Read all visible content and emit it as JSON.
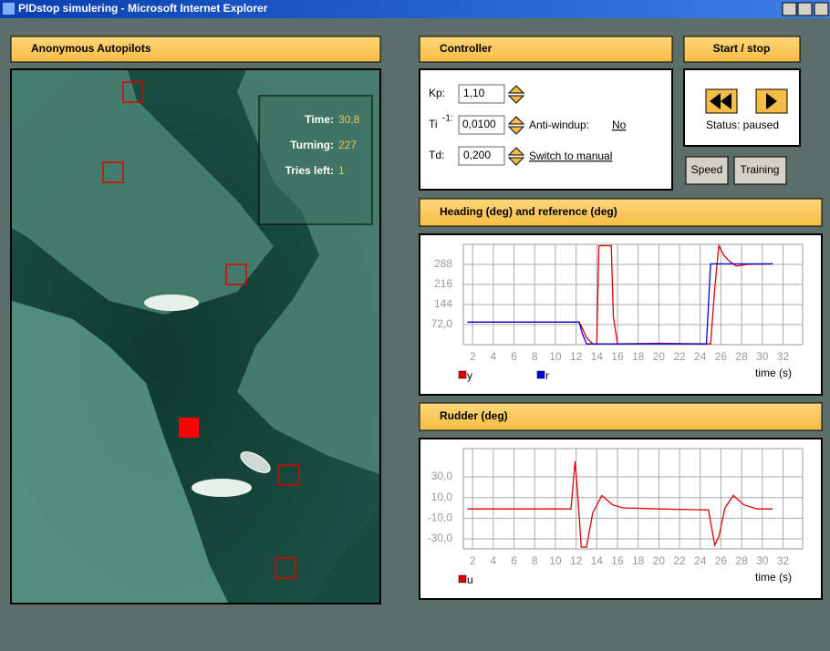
{
  "window": {
    "title": "PIDstop simulering - Microsoft Internet Explorer"
  },
  "map_panel": {
    "title": "Anonymous Autopilots",
    "info": [
      {
        "label": "Time:",
        "value": "30,8"
      },
      {
        "label": "Turning:",
        "value": "227"
      },
      {
        "label": "Tries left:",
        "value": "1"
      }
    ]
  },
  "controller": {
    "title": "Controller",
    "kp_label": "Kp:",
    "kp": "1,10",
    "ti_label": "Ti",
    "ti_exponent": "-1:",
    "ti": "0,0100",
    "anti_windup_label": "Anti-windup:",
    "anti_windup": "No",
    "td_label": "Td:",
    "td": "0,200",
    "switch_link": "Switch to manual"
  },
  "start_stop": {
    "title": "Start / stop",
    "status": "Status: paused",
    "buttons": [
      "Speed",
      "Training"
    ]
  },
  "chart_data": [
    {
      "type": "line",
      "title": "Heading (deg) and reference (deg)",
      "x_label": "time (s)",
      "grid": true,
      "x": [
        1.5,
        12.3,
        12.6,
        13.0,
        13.6,
        14.0,
        14.2,
        15.4,
        15.6,
        16.0,
        20,
        24.6,
        25.0,
        25.4,
        25.8,
        26.3,
        26.8,
        27.5,
        28.5,
        31
      ],
      "series": [
        {
          "name": "y",
          "color": "#e00000",
          "values": [
            81,
            81,
            60,
            25,
            3,
            3,
            355,
            355,
            100,
            3,
            5,
            3,
            3,
            200,
            355,
            320,
            300,
            282,
            288,
            290
          ]
        },
        {
          "name": "r",
          "color": "#0000e0",
          "values": [
            81,
            81,
            40,
            3,
            3,
            3,
            3,
            3,
            3,
            3,
            3,
            3,
            290,
            290,
            290,
            290,
            290,
            290,
            290,
            290
          ]
        }
      ],
      "xlim": [
        1.1,
        33.9
      ],
      "ylim": [
        0,
        360
      ],
      "xticks": [
        2,
        4,
        6,
        8,
        10,
        12,
        14,
        16,
        18,
        20,
        22,
        24,
        26,
        28,
        30,
        32
      ],
      "yticks": [
        {
          "value": 72,
          "label": "72,0"
        },
        144,
        216,
        288
      ]
    },
    {
      "type": "line",
      "title": "Rudder (deg)",
      "x_label": "time (s)",
      "grid": true,
      "x": [
        1.5,
        11.5,
        11.9,
        12.1,
        12.5,
        13.0,
        13.6,
        14.5,
        15.5,
        16.5,
        20,
        24.8,
        25.4,
        25.8,
        26.4,
        27.2,
        28.2,
        29.5,
        31
      ],
      "series": [
        {
          "name": "u",
          "color": "#e00000",
          "values": [
            -1,
            -1,
            45,
            20,
            -38,
            -38,
            -5,
            12,
            3,
            0,
            -1,
            -2,
            -36,
            -28,
            0,
            12,
            3,
            -1,
            -1
          ]
        }
      ],
      "xlim": [
        1.1,
        33.9
      ],
      "ylim": [
        -39.7,
        57.4
      ],
      "xticks": [
        2,
        4,
        6,
        8,
        10,
        12,
        14,
        16,
        18,
        20,
        22,
        24,
        26,
        28,
        30,
        32
      ],
      "yticks": [
        {
          "value": -30,
          "label": "-30,0"
        },
        {
          "value": -10,
          "label": "-10,0"
        },
        {
          "value": 10,
          "label": "10,0"
        },
        {
          "value": 30,
          "label": "30,0"
        }
      ]
    }
  ]
}
